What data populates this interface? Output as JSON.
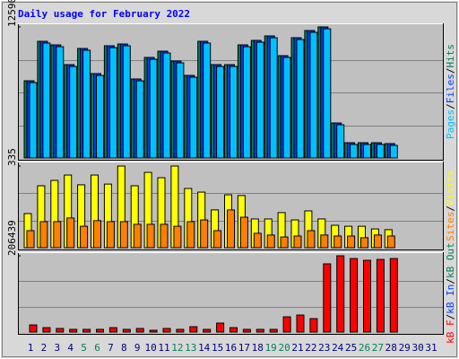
{
  "title": "Daily usage for February 2022",
  "chart_data": [
    {
      "type": "bar",
      "ylim": [
        0,
        12590
      ],
      "yticks": [
        12590
      ],
      "legend_separator": "/",
      "series": [
        {
          "name": "Pages",
          "color": "#00c0ff",
          "values": [
            7240,
            11040,
            10690,
            8790,
            10350,
            7930,
            10600,
            10780,
            7410,
            9480,
            10090,
            9140,
            7760,
            11040,
            8790,
            8790,
            10690,
            11120,
            11550,
            9660,
            11380,
            12070,
            12410,
            3190,
            1300,
            1300,
            1300,
            1210,
            null,
            null,
            null
          ]
        },
        {
          "name": "Files",
          "color": "#0040ff",
          "values": [
            7416,
            11210,
            10865,
            8968,
            10520,
            8106,
            10779,
            10951,
            7588,
            9658,
            10262,
            9313,
            7933,
            11210,
            8968,
            8968,
            10865,
            11296,
            11727,
            9830,
            11555,
            12245,
            12590,
            3363,
            1466,
            1466,
            1466,
            1380,
            null,
            null,
            null
          ]
        },
        {
          "name": "Hits",
          "color": "#00805c",
          "values": [
            7416,
            11210,
            10865,
            8968,
            10520,
            8106,
            10779,
            10951,
            7588,
            9658,
            10262,
            9313,
            7933,
            11210,
            8968,
            8968,
            10865,
            11296,
            11727,
            9830,
            11555,
            12245,
            12590,
            3363,
            1466,
            1466,
            1466,
            1380,
            null,
            null,
            null
          ]
        }
      ]
    },
    {
      "type": "bar",
      "ylim": [
        0,
        335
      ],
      "yticks": [
        335
      ],
      "legend_separator": "/",
      "series": [
        {
          "name": "Sites",
          "color": "#ff8000",
          "values": [
            70,
            107,
            107,
            122,
            88,
            111,
            107,
            107,
            96,
            96,
            96,
            88,
            107,
            114,
            70,
            155,
            125,
            59,
            52,
            44,
            48,
            70,
            52,
            48,
            48,
            41,
            52,
            48,
            null,
            null,
            null
          ]
        },
        {
          "name": "Visits",
          "color": "#ffff00",
          "values": [
            140,
            254,
            276,
            298,
            258,
            298,
            261,
            335,
            254,
            309,
            287,
            335,
            243,
            228,
            155,
            217,
            214,
            118,
            118,
            144,
            114,
            151,
            118,
            92,
            88,
            88,
            77,
            74,
            null,
            null,
            null
          ]
        }
      ]
    },
    {
      "type": "bar",
      "ylim": [
        0,
        206439
      ],
      "yticks": [
        206439
      ],
      "legend_separator": "/",
      "categories": [
        "1",
        "2",
        "3",
        "4",
        "5",
        "6",
        "7",
        "8",
        "9",
        "10",
        "11",
        "12",
        "13",
        "14",
        "15",
        "16",
        "17",
        "18",
        "19",
        "20",
        "21",
        "22",
        "23",
        "24",
        "25",
        "26",
        "27",
        "28",
        "29",
        "30",
        "31"
      ],
      "weekend_indices": [
        4,
        5,
        11,
        12,
        18,
        19,
        25,
        26
      ],
      "weekend_color": "#00805c",
      "weekday_color": "#000080",
      "series": [
        {
          "name": "kB F",
          "color": "#ff0000",
          "values": [
            19400,
            12000,
            9700,
            7300,
            7300,
            7300,
            12000,
            7300,
            9700,
            4900,
            9700,
            7300,
            14600,
            7300,
            24300,
            12000,
            7300,
            7300,
            7300,
            41300,
            46100,
            36400,
            184600,
            206439,
            199000,
            194200,
            196600,
            199000,
            null,
            null,
            null
          ]
        },
        {
          "name": "kB In",
          "color": "#0040ff",
          "values": [
            null,
            null,
            null,
            null,
            null,
            null,
            null,
            null,
            null,
            null,
            null,
            null,
            null,
            null,
            null,
            null,
            null,
            null,
            null,
            null,
            null,
            null,
            null,
            null,
            null,
            null,
            null,
            null,
            null,
            null,
            null
          ]
        },
        {
          "name": "kB Out",
          "color": "#00805c",
          "values": [
            null,
            null,
            null,
            null,
            null,
            null,
            null,
            null,
            null,
            null,
            null,
            null,
            null,
            null,
            null,
            null,
            null,
            null,
            null,
            null,
            null,
            null,
            null,
            null,
            null,
            null,
            null,
            null,
            null,
            null,
            null
          ]
        }
      ]
    }
  ]
}
